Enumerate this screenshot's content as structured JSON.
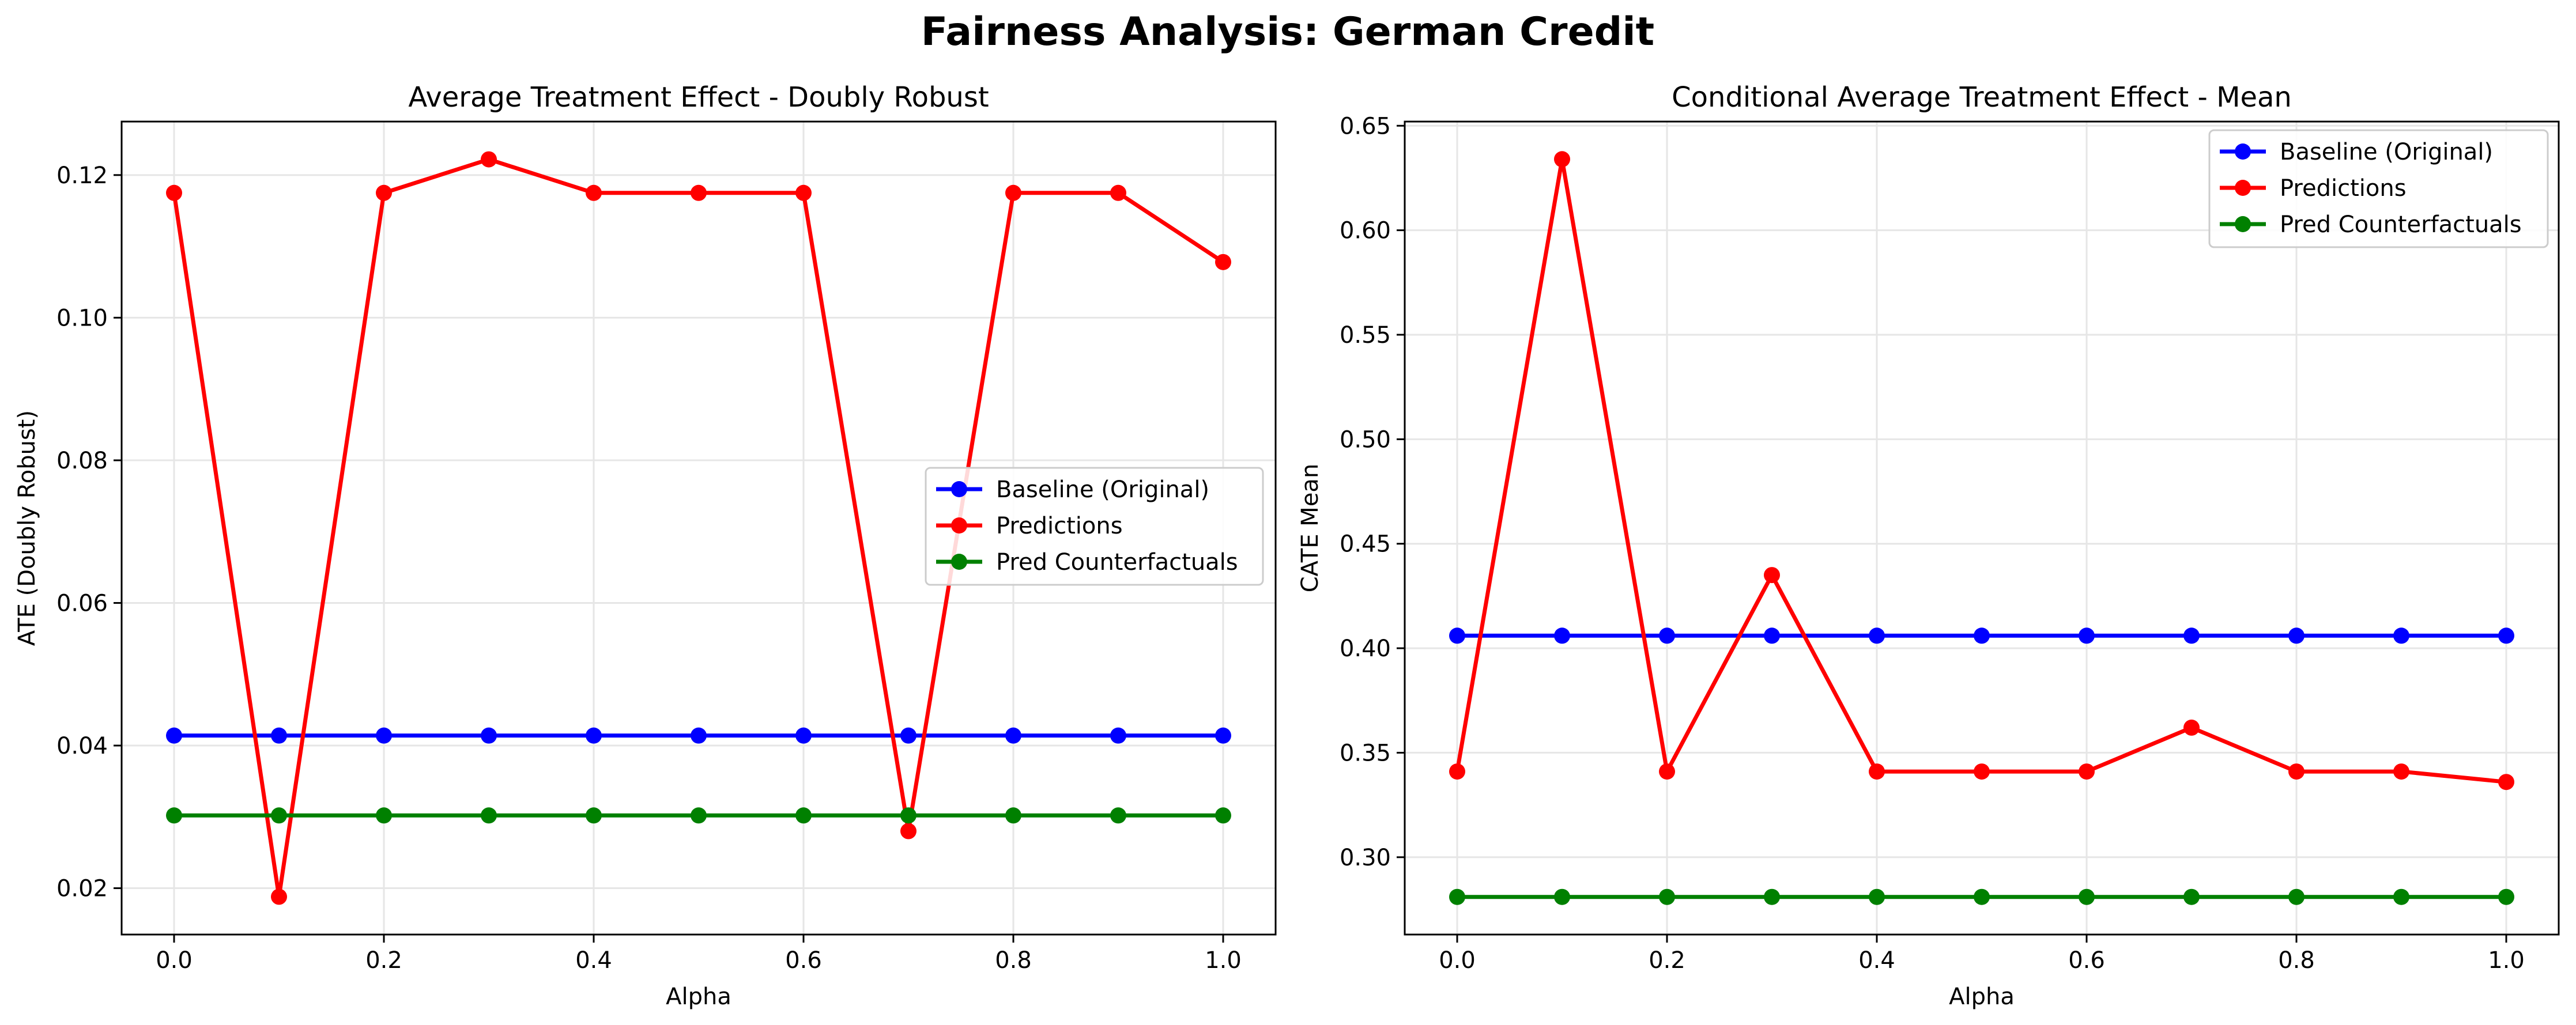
{
  "figure": {
    "suptitle": "Fairness Analysis: German Credit"
  },
  "colors": {
    "baseline": "#0000ff",
    "predictions": "#ff0000",
    "counterfactuals": "#008000",
    "grid": "#e6e6e6",
    "axis": "#000000"
  },
  "chart_data": [
    {
      "type": "line",
      "title": "Average Treatment Effect - Doubly Robust",
      "xlabel": "Alpha",
      "ylabel": "ATE (Doubly Robust)",
      "xlim": [
        -0.05,
        1.05
      ],
      "ylim": [
        0.0135,
        0.1275
      ],
      "xticks": [
        0.0,
        0.2,
        0.4,
        0.6,
        0.8,
        1.0
      ],
      "xtick_labels": [
        "0.0",
        "0.2",
        "0.4",
        "0.6",
        "0.8",
        "1.0"
      ],
      "yticks": [
        0.02,
        0.04,
        0.06,
        0.08,
        0.1,
        0.12
      ],
      "ytick_labels": [
        "0.02",
        "0.04",
        "0.06",
        "0.08",
        "0.10",
        "0.12"
      ],
      "grid": true,
      "legend_position": "center-right",
      "x": [
        0.0,
        0.1,
        0.2,
        0.3,
        0.4,
        0.5,
        0.6,
        0.7,
        0.8,
        0.9,
        1.0
      ],
      "series": [
        {
          "name": "Baseline (Original)",
          "color": "#0000ff",
          "values": [
            0.0414,
            0.0414,
            0.0414,
            0.0414,
            0.0414,
            0.0414,
            0.0414,
            0.0414,
            0.0414,
            0.0414,
            0.0414
          ]
        },
        {
          "name": "Predictions",
          "color": "#ff0000",
          "values": [
            0.1175,
            0.0188,
            0.1175,
            0.1222,
            0.1175,
            0.1175,
            0.1175,
            0.028,
            0.1175,
            0.1175,
            0.1078
          ]
        },
        {
          "name": "Pred Counterfactuals",
          "color": "#008000",
          "values": [
            0.0302,
            0.0302,
            0.0302,
            0.0302,
            0.0302,
            0.0302,
            0.0302,
            0.0302,
            0.0302,
            0.0302,
            0.0302
          ]
        }
      ]
    },
    {
      "type": "line",
      "title": "Conditional Average Treatment Effect - Mean",
      "xlabel": "Alpha",
      "ylabel": "CATE Mean",
      "xlim": [
        -0.05,
        1.05
      ],
      "ylim": [
        0.263,
        0.652
      ],
      "xticks": [
        0.0,
        0.2,
        0.4,
        0.6,
        0.8,
        1.0
      ],
      "xtick_labels": [
        "0.0",
        "0.2",
        "0.4",
        "0.6",
        "0.8",
        "1.0"
      ],
      "yticks": [
        0.3,
        0.35,
        0.4,
        0.45,
        0.5,
        0.55,
        0.6,
        0.65
      ],
      "ytick_labels": [
        "0.30",
        "0.35",
        "0.40",
        "0.45",
        "0.50",
        "0.55",
        "0.60",
        "0.65"
      ],
      "grid": true,
      "legend_position": "top-right",
      "x": [
        0.0,
        0.1,
        0.2,
        0.3,
        0.4,
        0.5,
        0.6,
        0.7,
        0.8,
        0.9,
        1.0
      ],
      "series": [
        {
          "name": "Baseline (Original)",
          "color": "#0000ff",
          "values": [
            0.406,
            0.406,
            0.406,
            0.406,
            0.406,
            0.406,
            0.406,
            0.406,
            0.406,
            0.406,
            0.406
          ]
        },
        {
          "name": "Predictions",
          "color": "#ff0000",
          "values": [
            0.341,
            0.634,
            0.341,
            0.435,
            0.341,
            0.341,
            0.341,
            0.362,
            0.341,
            0.341,
            0.336
          ]
        },
        {
          "name": "Pred Counterfactuals",
          "color": "#008000",
          "values": [
            0.281,
            0.281,
            0.281,
            0.281,
            0.281,
            0.281,
            0.281,
            0.281,
            0.281,
            0.281,
            0.281
          ]
        }
      ]
    }
  ]
}
